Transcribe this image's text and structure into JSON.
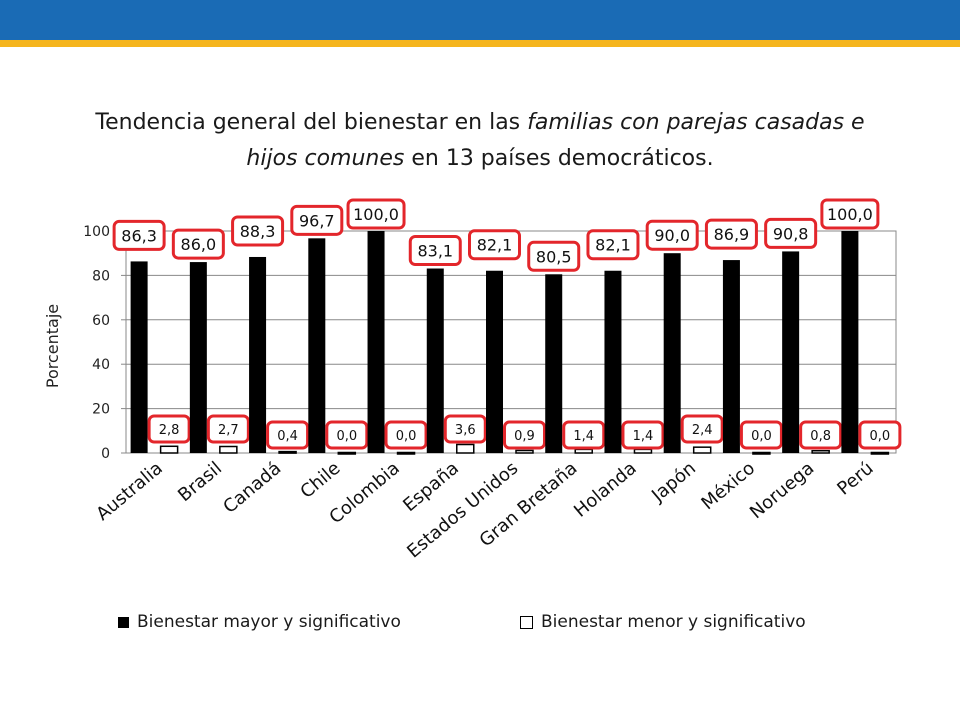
{
  "header": {
    "bar_color": "#1a6bb5",
    "stripe_color": "#f5b51e"
  },
  "title": {
    "part1": "Tendencia general del bienestar en las ",
    "part2_italic": "familias con parejas casadas e hijos comunes",
    "part3": " en 13 países democráticos."
  },
  "chart_data": {
    "type": "bar",
    "categories": [
      "Australia",
      "Brasil",
      "Canadá",
      "Chile",
      "Colombia",
      "España",
      "Estados Unidos",
      "Gran Bretaña",
      "Holanda",
      "Japón",
      "México",
      "Noruega",
      "Perú"
    ],
    "series": [
      {
        "name": "Bienestar mayor y significativo",
        "color": "#000000",
        "values": [
          86.3,
          86.0,
          88.3,
          96.7,
          100.0,
          83.1,
          82.1,
          80.5,
          82.1,
          90.0,
          86.9,
          90.8,
          100.0
        ],
        "labels": [
          "86,3",
          "86,0",
          "88,3",
          "96,7",
          "100,0",
          "83,1",
          "82,1",
          "80,5",
          "82,1",
          "90,0",
          "86,9",
          "90,8",
          "100,0"
        ]
      },
      {
        "name": "Bienestar menor y significativo",
        "color": "#ffffff",
        "values": [
          2.8,
          2.7,
          0.4,
          0.0,
          0.0,
          3.6,
          0.9,
          1.4,
          1.4,
          2.4,
          0.0,
          0.8,
          0.0
        ],
        "labels": [
          "2,8",
          "2,7",
          "0,4",
          "0,0",
          "0,0",
          "3,6",
          "0,9",
          "1,4",
          "1,4",
          "2,4",
          "0,0",
          "0,8",
          "0,0"
        ]
      }
    ],
    "ylabel": "Porcentaje",
    "xlabel": "",
    "ylim": [
      0,
      100
    ],
    "yticks": [
      0,
      20,
      40,
      60,
      80,
      100
    ],
    "grid": true,
    "legend_position": "bottom",
    "label_box_color": "#e3262b"
  }
}
